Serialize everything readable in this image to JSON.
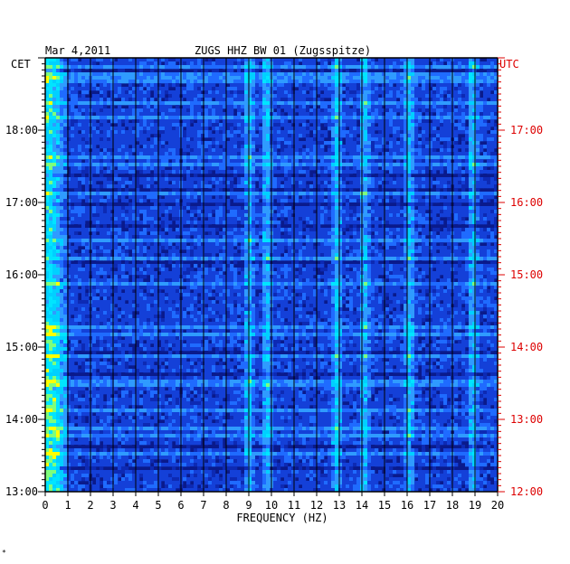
{
  "chart_data": {
    "type": "heatmap",
    "title_date": "Mar 4,2011",
    "title_station": "ZUGS HHZ BW 01 (Zugsspitze)",
    "xlabel": "FREQUENCY (HZ)",
    "xlim": [
      0,
      20
    ],
    "x_ticks": [
      "0",
      "1",
      "2",
      "3",
      "4",
      "5",
      "6",
      "7",
      "8",
      "9",
      "10",
      "11",
      "12",
      "13",
      "14",
      "15",
      "16",
      "17",
      "18",
      "19",
      "20"
    ],
    "left_axis_label": "CET",
    "right_axis_label": "UTC",
    "left_ticks": [
      "18:00",
      "17:00",
      "16:00",
      "15:00",
      "14:00",
      "13:00"
    ],
    "right_ticks": [
      "17:00",
      "16:00",
      "15:00",
      "14:00",
      "13:00",
      "12:00"
    ],
    "y_range_utc": [
      "12:00",
      "18:15"
    ],
    "colors": {
      "background_low": "#0a1a8c",
      "mid": "#1f6bff",
      "high": "#00e5ff",
      "peak": "#ffff00",
      "axis_left": "#000000",
      "axis_right": "#dd0000"
    },
    "notable_bands_hz": [
      0.4,
      9.0,
      9.8,
      12.9,
      14.1,
      16.1,
      18.9
    ]
  },
  "corner_mark": "*"
}
